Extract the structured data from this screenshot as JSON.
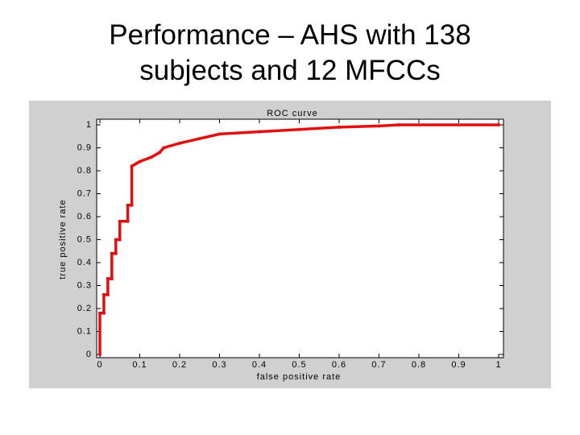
{
  "slide_title": [
    "Performance – AHS with 138",
    "subjects and 12 MFCCs"
  ],
  "chart_data": {
    "type": "line",
    "title": "ROC curve",
    "x_label": "false positive rate",
    "y_label": "true positive rate",
    "xlim": [
      0,
      1
    ],
    "ylim": [
      0,
      1
    ],
    "xticks": [
      0,
      0.1,
      0.2,
      0.3,
      0.4,
      0.5,
      0.6,
      0.7,
      0.8,
      0.9,
      1
    ],
    "yticks": [
      0,
      0.1,
      0.2,
      0.3,
      0.4,
      0.5,
      0.6,
      0.7,
      0.8,
      0.9,
      1
    ],
    "series": [
      {
        "color": "#e01010",
        "x": [
          0,
          0,
          0.01,
          0.01,
          0.02,
          0.02,
          0.03,
          0.03,
          0.04,
          0.04,
          0.05,
          0.05,
          0.07,
          0.07,
          0.08,
          0.08,
          0.09,
          0.1,
          0.13,
          0.15,
          0.16,
          0.2,
          0.25,
          0.3,
          0.4,
          0.5,
          0.6,
          0.7,
          0.75,
          1
        ],
        "values": [
          0,
          0.18,
          0.18,
          0.26,
          0.26,
          0.33,
          0.33,
          0.44,
          0.44,
          0.5,
          0.5,
          0.58,
          0.58,
          0.65,
          0.65,
          0.82,
          0.83,
          0.84,
          0.86,
          0.88,
          0.9,
          0.92,
          0.94,
          0.96,
          0.97,
          0.98,
          0.99,
          0.995,
          1,
          1
        ]
      }
    ]
  }
}
